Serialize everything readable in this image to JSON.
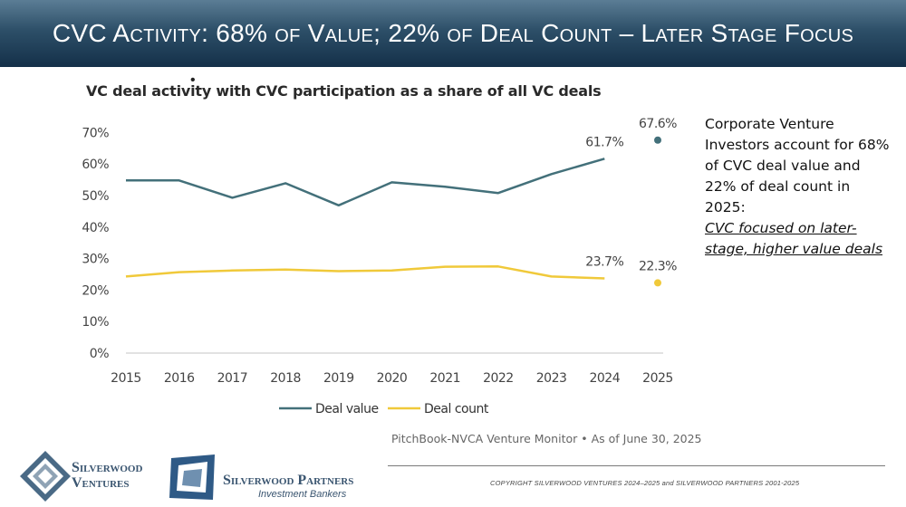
{
  "slide": {
    "title": "CVC Activity: 68% of Value; 22% of Deal Count – Later Stage Focus",
    "stray_mark": "•"
  },
  "side_note": {
    "body": "Corporate Venture Investors account for 68% of CVC deal value and 22% of deal count in 2025:",
    "emphasis": "CVC focused on later-stage, higher value deals"
  },
  "source_line": "PitchBook-NVCA Venture Monitor • As of June 30, 2025",
  "copyright": "COPYRIGHT SILVERWOOD VENTURES 2024–2025 and SILVERWOOD PARTNERS 2001-2025",
  "logos": {
    "ventures_line1": "Silverwood",
    "ventures_line2": "Ventures",
    "partners_name": "Silverwood Partners",
    "partners_sub": "Investment Bankers"
  },
  "colors": {
    "deal_value": "#43707a",
    "deal_count": "#f0c93a",
    "grid": "#d9d9d9",
    "axis_text": "#444444"
  },
  "chart_data": {
    "type": "line",
    "title": "VC deal activity with CVC participation as a share of all VC deals",
    "xlabel": "",
    "ylabel": "",
    "x": [
      "2015",
      "2016",
      "2017",
      "2018",
      "2019",
      "2020",
      "2021",
      "2022",
      "2023",
      "2024",
      "2025"
    ],
    "ylim": [
      0,
      70
    ],
    "yticks": [
      "0%",
      "10%",
      "20%",
      "30%",
      "40%",
      "50%",
      "60%",
      "70%"
    ],
    "grid": "baseline only",
    "legend": "bottom",
    "series": [
      {
        "name": "Deal value",
        "values": [
          54.8,
          54.8,
          49.3,
          53.9,
          46.9,
          54.2,
          52.8,
          50.8,
          56.8,
          61.7,
          67.6
        ],
        "line_through": 9,
        "labels": [
          {
            "index": 9,
            "text": "61.7%"
          },
          {
            "index": 10,
            "text": "67.6%"
          }
        ]
      },
      {
        "name": "Deal count",
        "values": [
          24.3,
          25.7,
          26.2,
          26.5,
          26.0,
          26.2,
          27.4,
          27.5,
          24.3,
          23.7,
          22.3
        ],
        "line_through": 9,
        "labels": [
          {
            "index": 9,
            "text": "23.7%"
          },
          {
            "index": 10,
            "text": "22.3%"
          }
        ]
      }
    ]
  }
}
